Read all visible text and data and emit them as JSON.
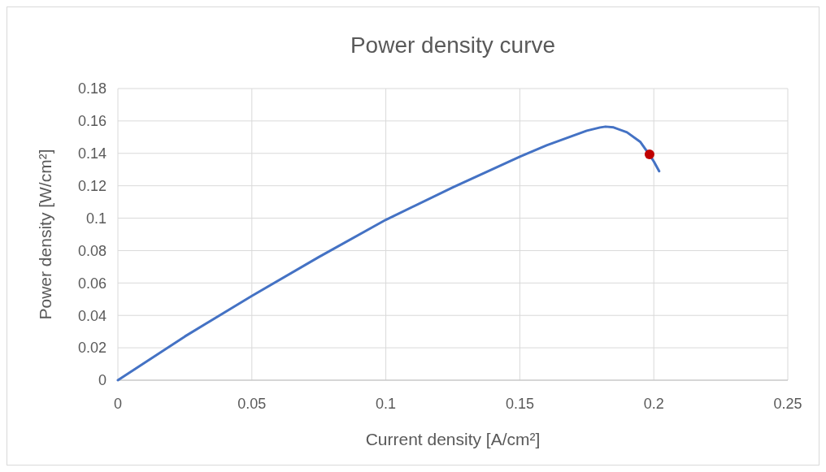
{
  "chart_data": {
    "type": "line",
    "title": "Power density curve",
    "xlabel": "Current density [A/cm²]",
    "ylabel": "Power density [W/cm²]",
    "series": [
      {
        "color": "#4472c4",
        "marker": "none",
        "x": [
          0,
          0.025,
          0.05,
          0.075,
          0.1,
          0.125,
          0.15,
          0.16,
          0.17,
          0.175,
          0.18,
          0.182,
          0.185,
          0.19,
          0.195,
          0.198,
          0.2,
          0.202
        ],
        "values": [
          0,
          0.027,
          0.052,
          0.076,
          0.099,
          0.119,
          0.138,
          0.145,
          0.151,
          0.154,
          0.156,
          0.1565,
          0.156,
          0.153,
          0.147,
          0.14,
          0.135,
          0.129
        ]
      },
      {
        "type": "scatter",
        "marker": "circle",
        "color": "#c00000",
        "x": [
          0.1984
        ],
        "values": [
          0.1394
        ]
      }
    ],
    "xlim": [
      0,
      0.25
    ],
    "xticks": [
      0,
      0.05,
      0.1,
      0.15,
      0.2,
      0.25
    ],
    "ylim": [
      0,
      0.18
    ],
    "yticks": [
      0,
      0.02,
      0.04,
      0.06,
      0.08,
      0.1,
      0.12,
      0.14,
      0.16,
      0.18
    ],
    "grid": true,
    "line_style": "solid"
  }
}
